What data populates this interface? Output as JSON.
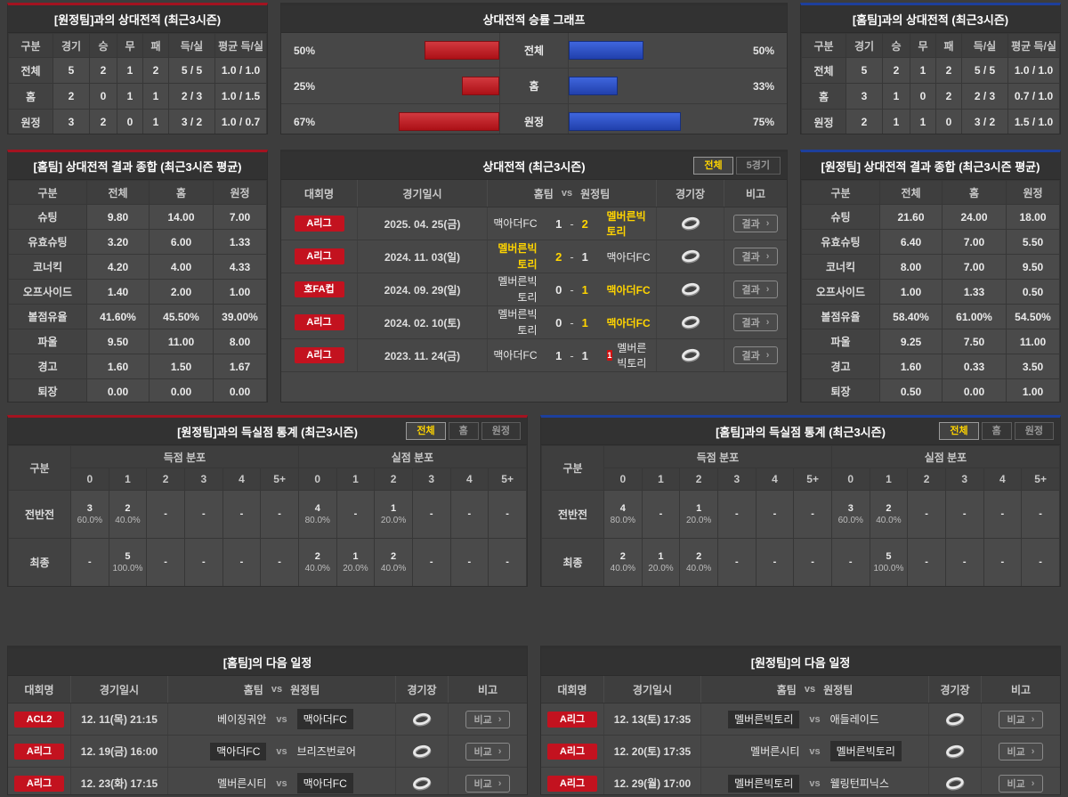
{
  "colors": {
    "red_accent": "#a31320",
    "blue_accent": "#1d3f9c",
    "badge_red": "#c3121f",
    "bar_red": "#c01218",
    "bar_blue": "#2d50c8",
    "highlight_yellow": "#ffd400"
  },
  "ui": {
    "vs": "vs",
    "arrow": "›"
  },
  "chart_data": {
    "type": "bar",
    "title": "상대전적 승률 그래프",
    "categories": [
      "전체",
      "홈",
      "원정"
    ],
    "series": [
      {
        "name": "좌측(적색) 승률",
        "color": "#c01218",
        "values": [
          50,
          25,
          67
        ]
      },
      {
        "name": "우측(청색) 승률",
        "color": "#2d50c8",
        "values": [
          50,
          33,
          75
        ]
      }
    ],
    "value_unit": "%",
    "xlim": [
      0,
      100
    ],
    "legend": "none",
    "grid": false
  },
  "win_chart": {
    "title": "상대전적 승률 그래프",
    "rows": [
      {
        "label": "전체",
        "left": "50%",
        "right": "50%"
      },
      {
        "label": "홈",
        "left": "25%",
        "right": "33%"
      },
      {
        "label": "원정",
        "left": "67%",
        "right": "75%"
      }
    ]
  },
  "records_away": {
    "title": "[원정팀]과의 상대전적 (최근3시즌)",
    "headers": [
      "구분",
      "경기",
      "승",
      "무",
      "패",
      "득/실",
      "평균 득/실"
    ],
    "rows": [
      {
        "label": "전체",
        "c": [
          "5",
          "2",
          "1",
          "2",
          "5 / 5",
          "1.0 / 1.0"
        ]
      },
      {
        "label": "홈",
        "c": [
          "2",
          "0",
          "1",
          "1",
          "2 / 3",
          "1.0 / 1.5"
        ]
      },
      {
        "label": "원정",
        "c": [
          "3",
          "2",
          "0",
          "1",
          "3 / 2",
          "1.0 / 0.7"
        ]
      }
    ]
  },
  "records_home": {
    "title": "[홈팀]과의 상대전적 (최근3시즌)",
    "headers": [
      "구분",
      "경기",
      "승",
      "무",
      "패",
      "득/실",
      "평균 득/실"
    ],
    "rows": [
      {
        "label": "전체",
        "c": [
          "5",
          "2",
          "1",
          "2",
          "5 / 5",
          "1.0 / 1.0"
        ]
      },
      {
        "label": "홈",
        "c": [
          "3",
          "1",
          "0",
          "2",
          "2 / 3",
          "0.7 / 1.0"
        ]
      },
      {
        "label": "원정",
        "c": [
          "2",
          "1",
          "1",
          "0",
          "3 / 2",
          "1.5 / 1.0"
        ]
      }
    ]
  },
  "summary_home": {
    "title": "[홈팀] 상대전적 결과 종합 (최근3시즌 평균)",
    "headers": [
      "구분",
      "전체",
      "홈",
      "원정"
    ],
    "rows": [
      {
        "label": "슈팅",
        "c": [
          "9.80",
          "14.00",
          "7.00"
        ]
      },
      {
        "label": "유효슈팅",
        "c": [
          "3.20",
          "6.00",
          "1.33"
        ]
      },
      {
        "label": "코너킥",
        "c": [
          "4.20",
          "4.00",
          "4.33"
        ]
      },
      {
        "label": "오프사이드",
        "c": [
          "1.40",
          "2.00",
          "1.00"
        ]
      },
      {
        "label": "볼점유율",
        "c": [
          "41.60%",
          "45.50%",
          "39.00%"
        ]
      },
      {
        "label": "파울",
        "c": [
          "9.50",
          "11.00",
          "8.00"
        ]
      },
      {
        "label": "경고",
        "c": [
          "1.60",
          "1.50",
          "1.67"
        ]
      },
      {
        "label": "퇴장",
        "c": [
          "0.00",
          "0.00",
          "0.00"
        ]
      }
    ]
  },
  "summary_away": {
    "title": "[원정팀] 상대전적 결과 종합 (최근3시즌 평균)",
    "headers": [
      "구분",
      "전체",
      "홈",
      "원정"
    ],
    "rows": [
      {
        "label": "슈팅",
        "c": [
          "21.60",
          "24.00",
          "18.00"
        ]
      },
      {
        "label": "유효슈팅",
        "c": [
          "6.40",
          "7.00",
          "5.50"
        ]
      },
      {
        "label": "코너킥",
        "c": [
          "8.00",
          "7.00",
          "9.50"
        ]
      },
      {
        "label": "오프사이드",
        "c": [
          "1.00",
          "1.33",
          "0.50"
        ]
      },
      {
        "label": "볼점유율",
        "c": [
          "58.40%",
          "61.00%",
          "54.50%"
        ]
      },
      {
        "label": "파울",
        "c": [
          "9.25",
          "7.50",
          "11.00"
        ]
      },
      {
        "label": "경고",
        "c": [
          "1.60",
          "0.33",
          "3.50"
        ]
      },
      {
        "label": "퇴장",
        "c": [
          "0.50",
          "0.00",
          "1.00"
        ]
      }
    ]
  },
  "h2h": {
    "title": "상대전적 (최근3시즌)",
    "tabs": [
      {
        "label": "전체",
        "active": true
      },
      {
        "label": "5경기",
        "active": false
      }
    ],
    "headers": {
      "league": "대회명",
      "date": "경기일시",
      "home_label": "홈팀",
      "away_label": "원정팀",
      "stadium": "경기장",
      "note": "비고"
    },
    "button_label": "결과",
    "rows": [
      {
        "league": "A리그",
        "date": "2025. 04. 25(금)",
        "home": "맥아더FC",
        "hs": "1",
        "as": "2",
        "away": "멜버른빅토리",
        "win": "away",
        "badge": ""
      },
      {
        "league": "A리그",
        "date": "2024. 11. 03(일)",
        "home": "멜버른빅토리",
        "hs": "2",
        "as": "1",
        "away": "맥아더FC",
        "win": "home",
        "badge": ""
      },
      {
        "league": "호FA컵",
        "date": "2024. 09. 29(일)",
        "home": "멜버른빅토리",
        "hs": "0",
        "as": "1",
        "away": "맥아더FC",
        "win": "away",
        "badge": ""
      },
      {
        "league": "A리그",
        "date": "2024. 02. 10(토)",
        "home": "멜버른빅토리",
        "hs": "0",
        "as": "1",
        "away": "맥아더FC",
        "win": "away",
        "badge": ""
      },
      {
        "league": "A리그",
        "date": "2023. 11. 24(금)",
        "home": "맥아더FC",
        "hs": "1",
        "as": "1",
        "away": "멜버른빅토리",
        "win": "draw",
        "badge": "1"
      }
    ]
  },
  "gs_away": {
    "title": "[원정팀]과의 득실점 통계 (최근3시즌)",
    "tabs": [
      {
        "label": "전체",
        "active": true
      },
      {
        "label": "홈",
        "active": false
      },
      {
        "label": "원정",
        "active": false
      }
    ],
    "col_header": "구분",
    "groups": [
      "득점 분포",
      "실점 분포"
    ],
    "cols": [
      "0",
      "1",
      "2",
      "3",
      "4",
      "5+"
    ],
    "rows": [
      {
        "label": "전반전",
        "score": [
          {
            "n": "3",
            "p": "60.0%"
          },
          {
            "n": "2",
            "p": "40.0%"
          },
          {
            "n": "-",
            "p": ""
          },
          {
            "n": "-",
            "p": ""
          },
          {
            "n": "-",
            "p": ""
          },
          {
            "n": "-",
            "p": ""
          }
        ],
        "concede": [
          {
            "n": "4",
            "p": "80.0%"
          },
          {
            "n": "-",
            "p": ""
          },
          {
            "n": "1",
            "p": "20.0%"
          },
          {
            "n": "-",
            "p": ""
          },
          {
            "n": "-",
            "p": ""
          },
          {
            "n": "-",
            "p": ""
          }
        ]
      },
      {
        "label": "최종",
        "score": [
          {
            "n": "-",
            "p": ""
          },
          {
            "n": "5",
            "p": "100.0%"
          },
          {
            "n": "-",
            "p": ""
          },
          {
            "n": "-",
            "p": ""
          },
          {
            "n": "-",
            "p": ""
          },
          {
            "n": "-",
            "p": ""
          }
        ],
        "concede": [
          {
            "n": "2",
            "p": "40.0%"
          },
          {
            "n": "1",
            "p": "20.0%"
          },
          {
            "n": "2",
            "p": "40.0%"
          },
          {
            "n": "-",
            "p": ""
          },
          {
            "n": "-",
            "p": ""
          },
          {
            "n": "-",
            "p": ""
          }
        ]
      }
    ]
  },
  "gs_home": {
    "title": "[홈팀]과의 득실점 통계 (최근3시즌)",
    "tabs": [
      {
        "label": "전체",
        "active": true
      },
      {
        "label": "홈",
        "active": false
      },
      {
        "label": "원정",
        "active": false
      }
    ],
    "col_header": "구분",
    "groups": [
      "득점 분포",
      "실점 분포"
    ],
    "cols": [
      "0",
      "1",
      "2",
      "3",
      "4",
      "5+"
    ],
    "rows": [
      {
        "label": "전반전",
        "score": [
          {
            "n": "4",
            "p": "80.0%"
          },
          {
            "n": "-",
            "p": ""
          },
          {
            "n": "1",
            "p": "20.0%"
          },
          {
            "n": "-",
            "p": ""
          },
          {
            "n": "-",
            "p": ""
          },
          {
            "n": "-",
            "p": ""
          }
        ],
        "concede": [
          {
            "n": "3",
            "p": "60.0%"
          },
          {
            "n": "2",
            "p": "40.0%"
          },
          {
            "n": "-",
            "p": ""
          },
          {
            "n": "-",
            "p": ""
          },
          {
            "n": "-",
            "p": ""
          },
          {
            "n": "-",
            "p": ""
          }
        ]
      },
      {
        "label": "최종",
        "score": [
          {
            "n": "2",
            "p": "40.0%"
          },
          {
            "n": "1",
            "p": "20.0%"
          },
          {
            "n": "2",
            "p": "40.0%"
          },
          {
            "n": "-",
            "p": ""
          },
          {
            "n": "-",
            "p": ""
          },
          {
            "n": "-",
            "p": ""
          }
        ],
        "concede": [
          {
            "n": "-",
            "p": ""
          },
          {
            "n": "5",
            "p": "100.0%"
          },
          {
            "n": "-",
            "p": ""
          },
          {
            "n": "-",
            "p": ""
          },
          {
            "n": "-",
            "p": ""
          },
          {
            "n": "-",
            "p": ""
          }
        ]
      }
    ]
  },
  "sch_home": {
    "title": "[홈팀]의 다음 일정",
    "headers": {
      "league": "대회명",
      "date": "경기일시",
      "home_label": "홈팀",
      "away_label": "원정팀",
      "stadium": "경기장",
      "note": "비고"
    },
    "button_label": "비교",
    "rows": [
      {
        "league": "ACL2",
        "date": "12. 11(목) 21:15",
        "home": "베이징궈안",
        "away": "맥아더FC",
        "hl": "away"
      },
      {
        "league": "A리그",
        "date": "12. 19(금) 16:00",
        "home": "맥아더FC",
        "away": "브리즈번로어",
        "hl": "home"
      },
      {
        "league": "A리그",
        "date": "12. 23(화) 17:15",
        "home": "멜버른시티",
        "away": "맥아더FC",
        "hl": "away"
      }
    ]
  },
  "sch_away": {
    "title": "[원정팀]의 다음 일정",
    "headers": {
      "league": "대회명",
      "date": "경기일시",
      "home_label": "홈팀",
      "away_label": "원정팀",
      "stadium": "경기장",
      "note": "비고"
    },
    "button_label": "비교",
    "rows": [
      {
        "league": "A리그",
        "date": "12. 13(토) 17:35",
        "home": "멜버른빅토리",
        "away": "애들레이드",
        "hl": "home"
      },
      {
        "league": "A리그",
        "date": "12. 20(토) 17:35",
        "home": "멜버른시티",
        "away": "멜버른빅토리",
        "hl": "away"
      },
      {
        "league": "A리그",
        "date": "12. 29(월) 17:00",
        "home": "멜버른빅토리",
        "away": "웰링턴피닉스",
        "hl": "home"
      }
    ]
  }
}
